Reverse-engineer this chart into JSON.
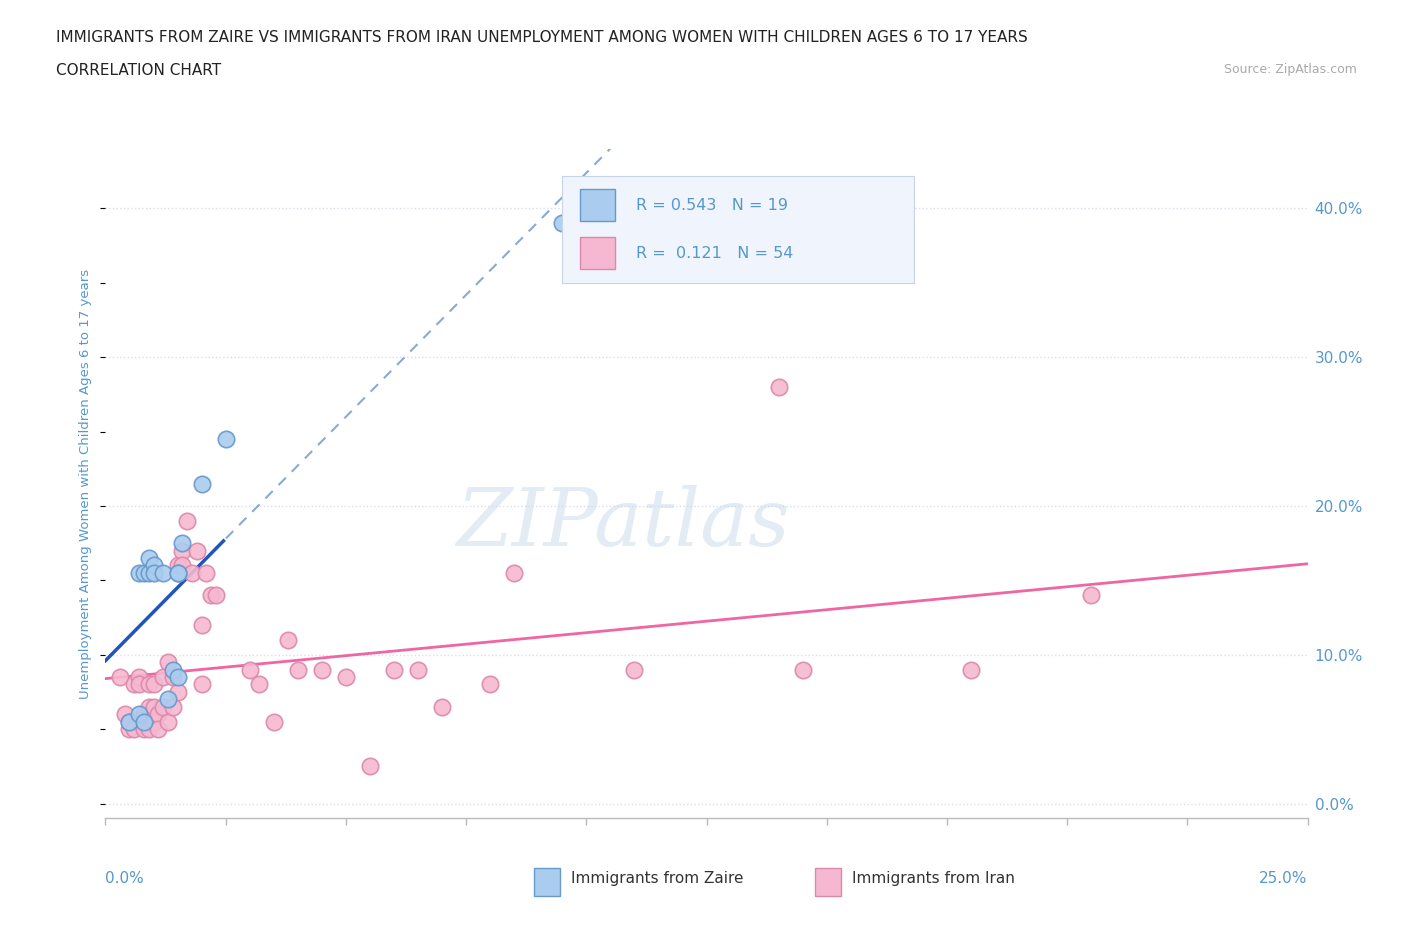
{
  "title_line1": "IMMIGRANTS FROM ZAIRE VS IMMIGRANTS FROM IRAN UNEMPLOYMENT AMONG WOMEN WITH CHILDREN AGES 6 TO 17 YEARS",
  "title_line2": "CORRELATION CHART",
  "source_text": "Source: ZipAtlas.com",
  "ylabel": "Unemployment Among Women with Children Ages 6 to 17 years",
  "xlim": [
    0,
    0.25
  ],
  "ylim": [
    -0.01,
    0.44
  ],
  "yticks": [
    0.0,
    0.1,
    0.2,
    0.3,
    0.4
  ],
  "ytick_labels": [
    "0.0%",
    "10.0%",
    "20.0%",
    "30.0%",
    "40.0%"
  ],
  "watermark_text": "ZIPatlas",
  "zaire_color": "#aaccee",
  "iran_color": "#f5b8d0",
  "zaire_edge_color": "#6699cc",
  "iran_edge_color": "#dd88aa",
  "zaire_R": 0.543,
  "zaire_N": 19,
  "iran_R": 0.121,
  "iran_N": 54,
  "legend_label_zaire": "Immigrants from Zaire",
  "legend_label_iran": "Immigrants from Iran",
  "zaire_line_color": "#2255bb",
  "iran_line_color": "#ee5599",
  "zaire_dashed_color": "#88aad4",
  "grid_color": "#ddddee",
  "title_color": "#222222",
  "tick_label_color": "#5599cc",
  "background_color": "#ffffff",
  "legend_bg_color": "#f0f4fc",
  "legend_border_color": "#c8d4e8",
  "zaire_points_x": [
    0.005,
    0.007,
    0.007,
    0.008,
    0.008,
    0.009,
    0.009,
    0.01,
    0.01,
    0.012,
    0.013,
    0.014,
    0.015,
    0.015,
    0.015,
    0.016,
    0.02,
    0.025,
    0.095
  ],
  "zaire_points_y": [
    0.055,
    0.06,
    0.155,
    0.055,
    0.155,
    0.155,
    0.165,
    0.16,
    0.155,
    0.155,
    0.07,
    0.09,
    0.155,
    0.155,
    0.085,
    0.175,
    0.215,
    0.245,
    0.39
  ],
  "iran_points_x": [
    0.003,
    0.004,
    0.005,
    0.005,
    0.006,
    0.006,
    0.007,
    0.007,
    0.008,
    0.008,
    0.009,
    0.009,
    0.009,
    0.01,
    0.01,
    0.01,
    0.011,
    0.011,
    0.012,
    0.012,
    0.013,
    0.013,
    0.014,
    0.014,
    0.015,
    0.015,
    0.016,
    0.016,
    0.017,
    0.018,
    0.019,
    0.02,
    0.02,
    0.021,
    0.022,
    0.023,
    0.03,
    0.032,
    0.035,
    0.038,
    0.04,
    0.045,
    0.05,
    0.055,
    0.06,
    0.065,
    0.07,
    0.08,
    0.085,
    0.11,
    0.14,
    0.145,
    0.18,
    0.205
  ],
  "iran_points_y": [
    0.085,
    0.06,
    0.05,
    0.055,
    0.08,
    0.05,
    0.085,
    0.08,
    0.05,
    0.06,
    0.08,
    0.065,
    0.05,
    0.065,
    0.08,
    0.055,
    0.06,
    0.05,
    0.085,
    0.065,
    0.055,
    0.095,
    0.085,
    0.065,
    0.16,
    0.075,
    0.17,
    0.16,
    0.19,
    0.155,
    0.17,
    0.12,
    0.08,
    0.155,
    0.14,
    0.14,
    0.09,
    0.08,
    0.055,
    0.11,
    0.09,
    0.09,
    0.085,
    0.025,
    0.09,
    0.09,
    0.065,
    0.08,
    0.155,
    0.09,
    0.28,
    0.09,
    0.09,
    0.14
  ]
}
